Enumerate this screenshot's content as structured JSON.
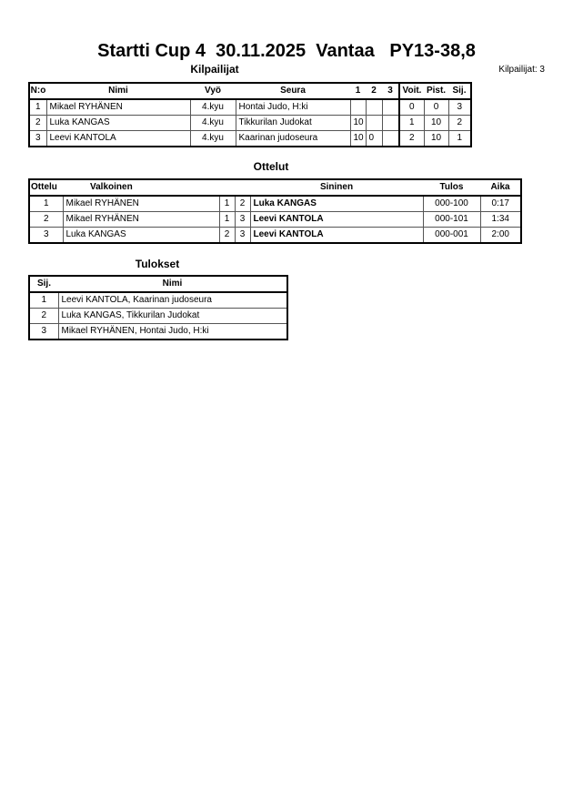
{
  "title": "Startti Cup 4  30.11.2025  Vantaa   PY13-38,8",
  "competitors": {
    "heading": "Kilpailijat",
    "count_label": "Kilpailijat: 3",
    "columns": [
      "N:o",
      "Nimi",
      "Vyö",
      "Seura",
      "1",
      "2",
      "3",
      "Voit.",
      "Pist.",
      "Sij."
    ],
    "rows": [
      [
        "1",
        "Mikael RYHÄNEN",
        "4.kyu",
        "Hontai Judo, H:ki",
        "",
        "",
        "",
        "0",
        "0",
        "3"
      ],
      [
        "2",
        "Luka KANGAS",
        "4.kyu",
        "Tikkurilan Judokat",
        "10",
        "",
        "",
        "1",
        "10",
        "2"
      ],
      [
        "3",
        "Leevi KANTOLA",
        "4.kyu",
        "Kaarinan judoseura",
        "10",
        "0",
        "",
        "2",
        "10",
        "1"
      ]
    ]
  },
  "matches": {
    "heading": "Ottelut",
    "columns": [
      "Ottelu",
      "Valkoinen",
      "Sininen",
      "Tulos",
      "Aika"
    ],
    "rows": [
      [
        "1",
        "Mikael RYHÄNEN",
        "1",
        "2",
        "Luka KANGAS",
        "000-100",
        "0:17"
      ],
      [
        "2",
        "Mikael RYHÄNEN",
        "1",
        "3",
        "Leevi KANTOLA",
        "000-101",
        "1:34"
      ],
      [
        "3",
        "Luka KANGAS",
        "2",
        "3",
        "Leevi KANTOLA",
        "000-001",
        "2:00"
      ]
    ]
  },
  "results": {
    "heading": "Tulokset",
    "columns": [
      "Sij.",
      "Nimi"
    ],
    "rows": [
      [
        "1",
        "Leevi KANTOLA, Kaarinan judoseura"
      ],
      [
        "2",
        "Luka KANGAS, Tikkurilan Judokat"
      ],
      [
        "3",
        "Mikael RYHÄNEN, Hontai Judo, H:ki"
      ]
    ]
  }
}
